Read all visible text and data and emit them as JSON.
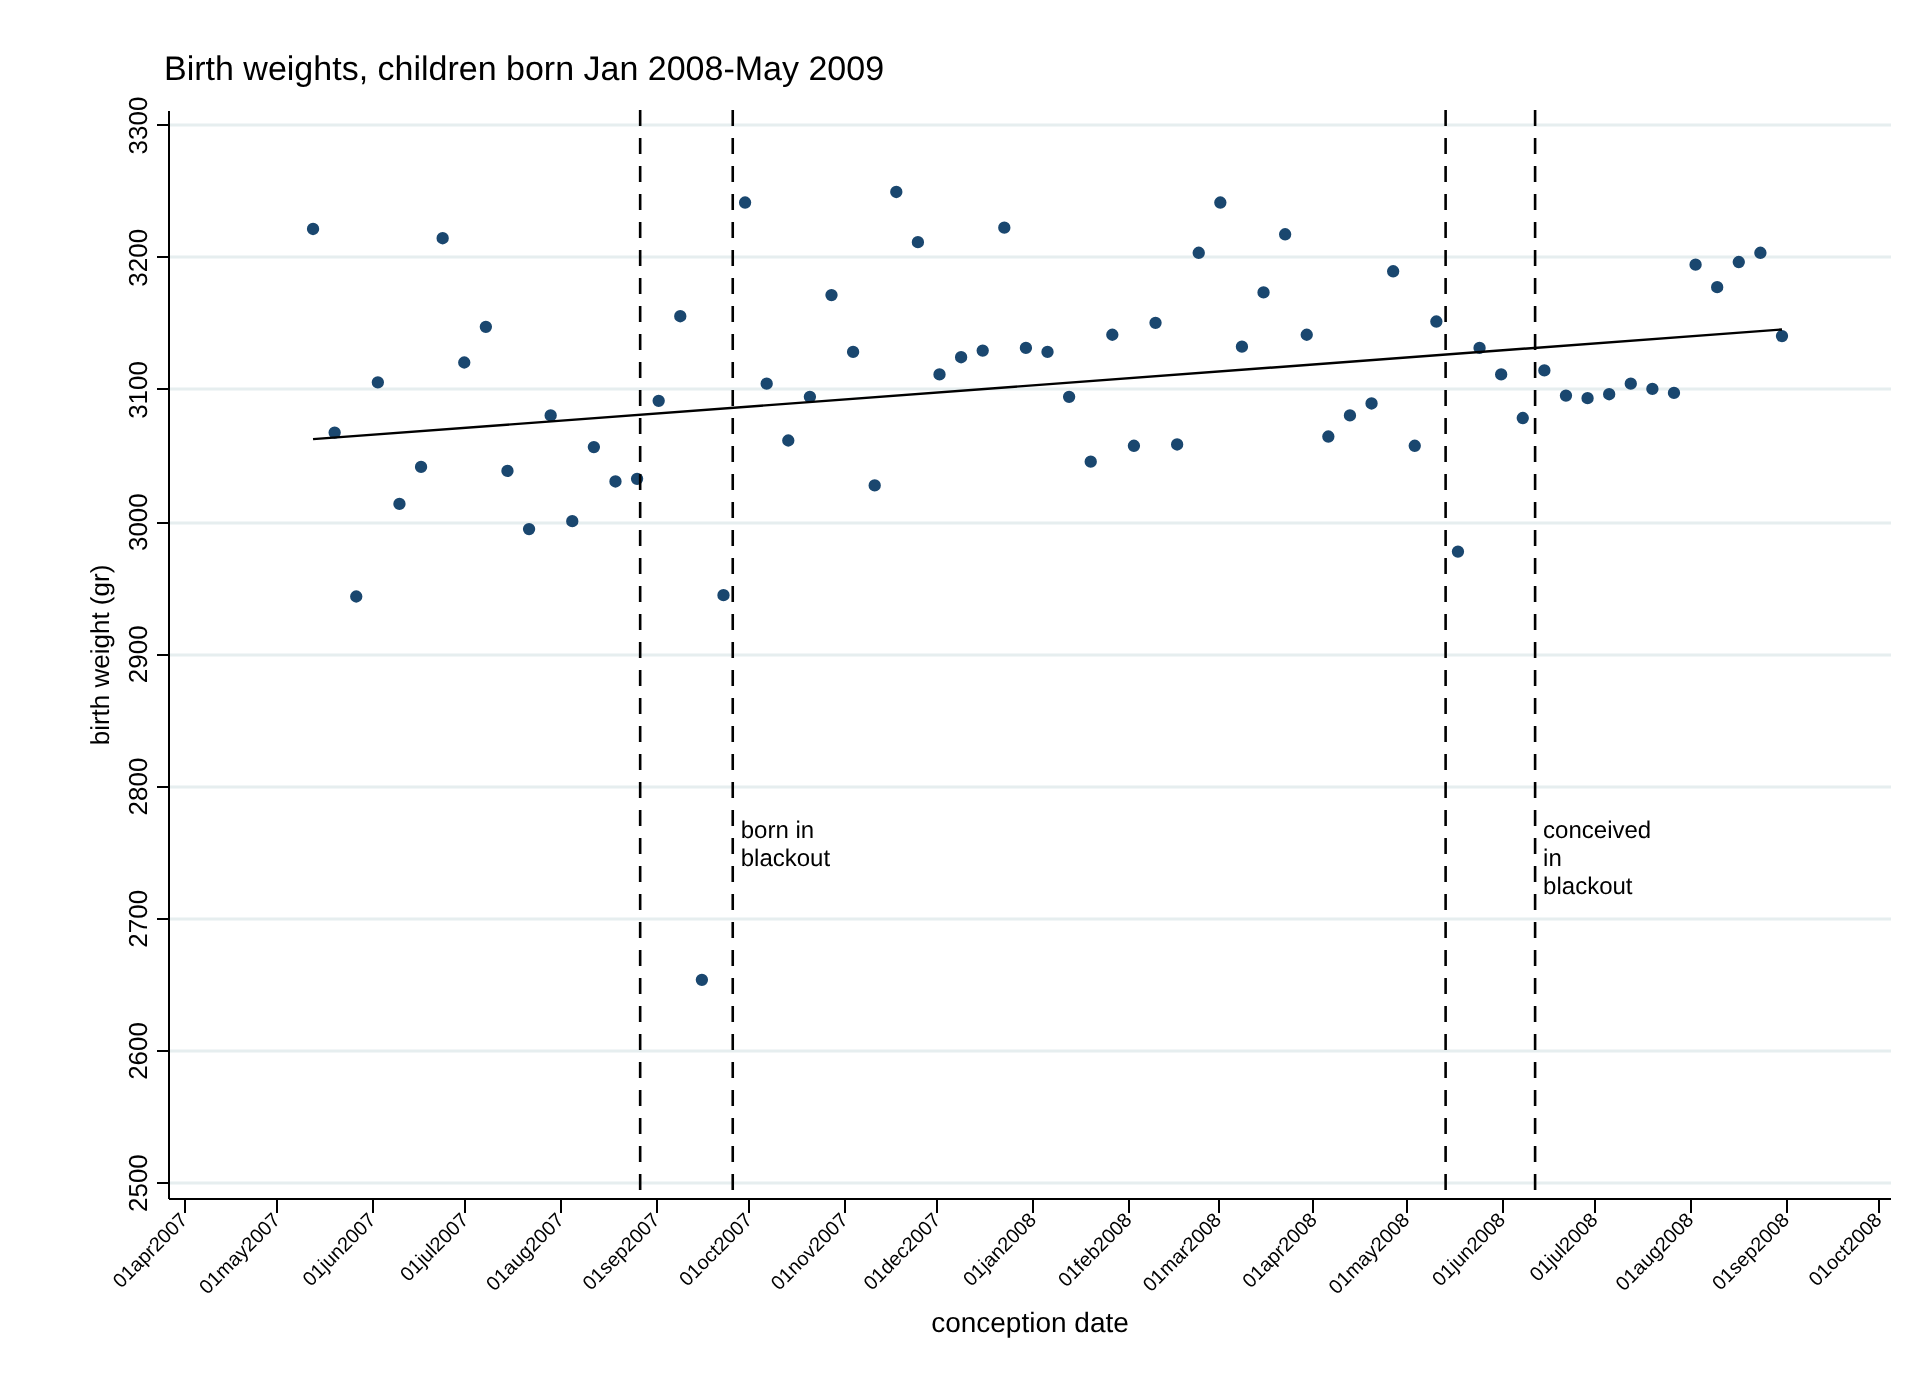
{
  "chart_data": {
    "type": "scatter",
    "title": "Birth weights, children born Jan 2008-May 2009",
    "xlabel": "conception date",
    "ylabel": "birth weight (gr)",
    "x": [
      "2007-05-13",
      "2007-05-20",
      "2007-05-27",
      "2007-06-03",
      "2007-06-10",
      "2007-06-17",
      "2007-06-24",
      "2007-07-01",
      "2007-07-08",
      "2007-07-15",
      "2007-07-22",
      "2007-07-29",
      "2007-08-05",
      "2007-08-12",
      "2007-08-19",
      "2007-08-26",
      "2007-09-02",
      "2007-09-09",
      "2007-09-16",
      "2007-09-23",
      "2007-09-30",
      "2007-10-07",
      "2007-10-14",
      "2007-10-21",
      "2007-10-28",
      "2007-11-04",
      "2007-11-11",
      "2007-11-18",
      "2007-11-25",
      "2007-12-02",
      "2007-12-09",
      "2007-12-16",
      "2007-12-23",
      "2007-12-30",
      "2008-01-06",
      "2008-01-13",
      "2008-01-20",
      "2008-01-27",
      "2008-02-03",
      "2008-02-10",
      "2008-02-17",
      "2008-02-24",
      "2008-03-02",
      "2008-03-09",
      "2008-03-16",
      "2008-03-23",
      "2008-03-30",
      "2008-04-06",
      "2008-04-13",
      "2008-04-20",
      "2008-04-27",
      "2008-05-04",
      "2008-05-11",
      "2008-05-18",
      "2008-05-25",
      "2008-06-01",
      "2008-06-08",
      "2008-06-15",
      "2008-06-22",
      "2008-06-29",
      "2008-07-06",
      "2008-07-13",
      "2008-07-20",
      "2008-07-27",
      "2008-08-03",
      "2008-08-10",
      "2008-08-17",
      "2008-08-24",
      "2008-08-31"
    ],
    "series": [
      {
        "color": "#1a476f",
        "marker": "circle",
        "values": [
          3221,
          3067,
          2943,
          3105,
          3013,
          3041,
          3214,
          3120,
          3147,
          3038,
          2994,
          3080,
          3000,
          3056,
          3030,
          3032,
          3091,
          3155,
          2653,
          2944,
          3241,
          3104,
          3061,
          3094,
          3171,
          3128,
          3027,
          3249,
          3211,
          3111,
          3124,
          3129,
          3222,
          3131,
          3128,
          3094,
          3045,
          3141,
          3057,
          3150,
          3058,
          3203,
          3241,
          3132,
          3173,
          3217,
          3141,
          3064,
          3080,
          3089,
          3189,
          3057,
          3151,
          2977,
          3131,
          3111,
          3078,
          3114,
          3095,
          3093,
          3096,
          3104,
          3100,
          3097,
          3194,
          3177,
          3196,
          3203,
          3140
        ]
      },
      {
        "type": "line",
        "color": "#000000",
        "line_style": "solid",
        "marker": "none",
        "x": [
          "2007-05-13",
          "2008-08-31"
        ],
        "values": [
          3062,
          3145
        ]
      }
    ],
    "ref_lines": [
      {
        "axis": "x",
        "value": "2007-08-27",
        "label": null,
        "color": "#000000",
        "line_style": "dashed"
      },
      {
        "axis": "x",
        "value": "2007-09-26",
        "label": "born in\nblackout",
        "color": "#000000",
        "line_style": "dashed"
      },
      {
        "axis": "x",
        "value": "2008-05-14",
        "label": null,
        "color": "#000000",
        "line_style": "dashed"
      },
      {
        "axis": "x",
        "value": "2008-06-12",
        "label": "conceived\nin\nblackout",
        "color": "#000000",
        "line_style": "dashed"
      }
    ],
    "xlim": [
      "2007-03-27",
      "2008-10-05"
    ],
    "ylim": [
      2488,
      3311
    ],
    "xticks": [
      {
        "value": "2007-04-01",
        "label": "01apr2007"
      },
      {
        "value": "2007-05-01",
        "label": "01may2007"
      },
      {
        "value": "2007-06-01",
        "label": "01jun2007"
      },
      {
        "value": "2007-07-01",
        "label": "01jul2007"
      },
      {
        "value": "2007-08-01",
        "label": "01aug2007"
      },
      {
        "value": "2007-09-01",
        "label": "01sep2007"
      },
      {
        "value": "2007-10-01",
        "label": "01oct2007"
      },
      {
        "value": "2007-11-01",
        "label": "01nov2007"
      },
      {
        "value": "2007-12-01",
        "label": "01dec2007"
      },
      {
        "value": "2008-01-01",
        "label": "01jan2008"
      },
      {
        "value": "2008-02-01",
        "label": "01feb2008"
      },
      {
        "value": "2008-03-01",
        "label": "01mar2008"
      },
      {
        "value": "2008-04-01",
        "label": "01apr2008"
      },
      {
        "value": "2008-05-01",
        "label": "01may2008"
      },
      {
        "value": "2008-06-01",
        "label": "01jun2008"
      },
      {
        "value": "2008-07-01",
        "label": "01jul2008"
      },
      {
        "value": "2008-08-01",
        "label": "01aug2008"
      },
      {
        "value": "2008-09-01",
        "label": "01sep2008"
      },
      {
        "value": "2008-10-01",
        "label": "01oct2008"
      }
    ],
    "yticks": [
      2500,
      2600,
      2700,
      2800,
      2900,
      3000,
      3100,
      3200,
      3300
    ],
    "grid": "y"
  }
}
